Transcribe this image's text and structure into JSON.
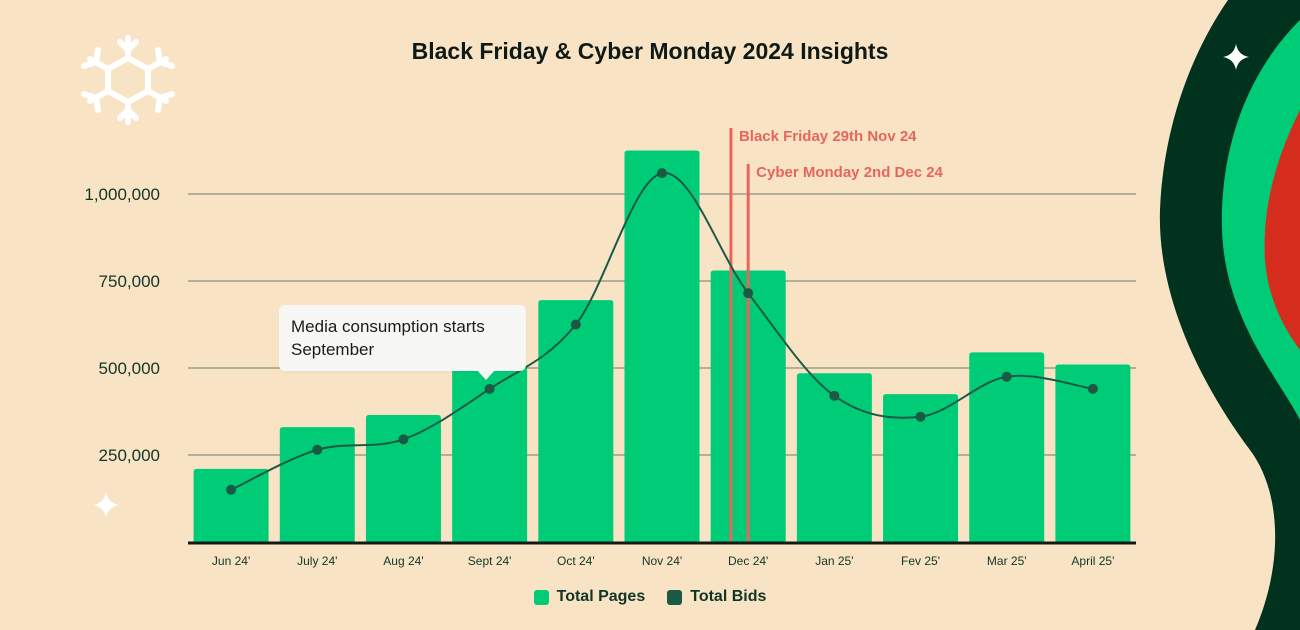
{
  "title": "Black Friday & Cyber Monday 2024 Insights",
  "colors": {
    "background": "#f8e4c5",
    "pages": "#00cc78",
    "bids": "#1a5a45",
    "marker": "#e8655d",
    "grid": "#9a9e8a",
    "axis": "#0f1a16",
    "deco_dark": "#00321e",
    "deco_green": "#00cc78",
    "deco_red": "#d42c1d"
  },
  "legend": [
    {
      "label": "Total Pages",
      "color": "#00cc78"
    },
    {
      "label": "Total Bids",
      "color": "#1a5a45"
    }
  ],
  "callout": {
    "line1": "Media consumption starts",
    "line2": "September"
  },
  "decor": {
    "icons": [
      "snowflake-icon",
      "sparkle-icon"
    ]
  },
  "chart_data": {
    "type": "bar",
    "title": "Black Friday & Cyber Monday 2024 Insights",
    "categories": [
      "Jun 24'",
      "July 24'",
      "Aug 24'",
      "Sept 24'",
      "Oct 24'",
      "Nov 24'",
      "Dec 24'",
      "Jan 25'",
      "Fev 25'",
      "Mar 25'",
      "April 25'"
    ],
    "series": [
      {
        "name": "Total Pages",
        "type": "bar",
        "values": [
          210000,
          330000,
          365000,
          510000,
          695000,
          1125000,
          780000,
          485000,
          425000,
          545000,
          510000
        ]
      },
      {
        "name": "Total Bids",
        "type": "line",
        "values": [
          150000,
          265000,
          295000,
          440000,
          625000,
          1060000,
          715000,
          420000,
          360000,
          475000,
          440000
        ]
      }
    ],
    "yticks": [
      250000,
      500000,
      750000,
      1000000
    ],
    "yticklabels": [
      "250,000",
      "500,000",
      "750,000",
      "1,000,000"
    ],
    "ylim": [
      0,
      1150000
    ],
    "grid": true,
    "legend_position": "bottom-center",
    "annotations": [
      {
        "label": "Black Friday 29th Nov 24",
        "category": "Dec 24'",
        "offset": -0.2
      },
      {
        "label": "Cyber Monday 2nd Dec 24",
        "category": "Dec 24'",
        "offset": 0.0
      }
    ]
  }
}
